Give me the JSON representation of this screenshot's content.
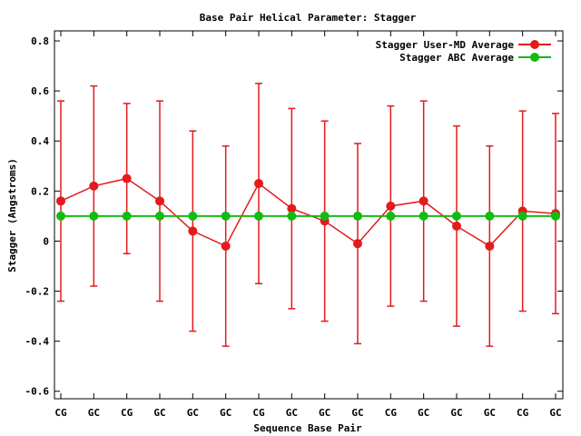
{
  "chart_data": {
    "type": "line",
    "title": "Base Pair Helical Parameter: Stagger",
    "xlabel": "Sequence Base Pair",
    "ylabel": "Stagger (Angstroms)",
    "ylim": [
      -0.63,
      0.84
    ],
    "yticks": [
      -0.6,
      -0.4,
      -0.2,
      0,
      0.2,
      0.4,
      0.6,
      0.8
    ],
    "ytick_labels": [
      "-0.6",
      "-0.4",
      "-0.2",
      "0",
      "0.2",
      "0.4",
      "0.6",
      "0.8"
    ],
    "categories": [
      "CG",
      "GC",
      "CG",
      "GC",
      "GC",
      "GC",
      "CG",
      "GC",
      "GC",
      "GC",
      "CG",
      "GC",
      "GC",
      "GC",
      "CG",
      "GC"
    ],
    "legend_position": "top-right",
    "grid": false,
    "series": [
      {
        "name": "Stagger User-MD Average",
        "color": "#e41a1c",
        "values": [
          0.16,
          0.22,
          0.25,
          0.16,
          0.04,
          -0.02,
          0.23,
          0.13,
          0.08,
          -0.01,
          0.14,
          0.16,
          0.06,
          -0.02,
          0.12,
          0.11
        ],
        "error_low": [
          -0.24,
          -0.18,
          -0.05,
          -0.24,
          -0.36,
          -0.42,
          -0.17,
          -0.27,
          -0.32,
          -0.41,
          -0.26,
          -0.24,
          -0.34,
          -0.42,
          -0.28,
          -0.29
        ],
        "error_high": [
          0.56,
          0.62,
          0.55,
          0.56,
          0.44,
          0.38,
          0.63,
          0.53,
          0.48,
          0.39,
          0.54,
          0.56,
          0.46,
          0.38,
          0.52,
          0.51
        ]
      },
      {
        "name": "Stagger ABC Average",
        "color": "#11bb11",
        "values": [
          0.1,
          0.1,
          0.1,
          0.1,
          0.1,
          0.1,
          0.1,
          0.1,
          0.1,
          0.1,
          0.1,
          0.1,
          0.1,
          0.1,
          0.1,
          0.1
        ]
      }
    ]
  }
}
